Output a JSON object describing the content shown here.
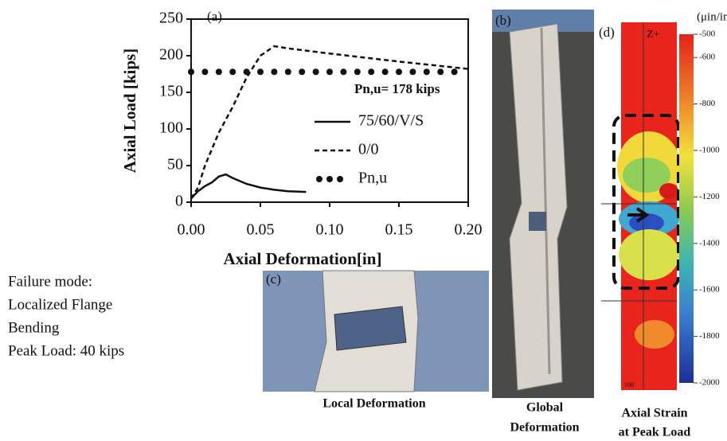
{
  "chart_data": {
    "type": "line",
    "panel_label": "(a)",
    "x_label": "Axial Deformation[in]",
    "y_label": "Axial Load [kips]",
    "xlim": [
      0,
      0.2
    ],
    "ylim": [
      0,
      250
    ],
    "xticks": [
      {
        "value": 0,
        "label": "0.00"
      },
      {
        "value": 0.05,
        "label": "0.05"
      },
      {
        "value": 0.1,
        "label": "0.10"
      },
      {
        "value": 0.15,
        "label": "0.15"
      },
      {
        "value": 0.2,
        "label": "0.20"
      }
    ],
    "yticks": [
      0,
      50,
      100,
      150,
      200,
      250
    ],
    "annotation": "Pn,u= 178 kips",
    "series": [
      {
        "name": "75/60/V/S",
        "color": "#111111",
        "style": "solid",
        "x": [
          0,
          0.005,
          0.01,
          0.015,
          0.02,
          0.025,
          0.03,
          0.04,
          0.05,
          0.06,
          0.07,
          0.083
        ],
        "values": [
          5,
          15,
          22,
          27,
          35,
          38,
          33,
          25,
          20,
          17,
          15,
          14
        ]
      },
      {
        "name": "0/0",
        "color": "#111111",
        "style": "dashed",
        "x": [
          0,
          0.005,
          0.01,
          0.02,
          0.03,
          0.04,
          0.05,
          0.06,
          0.07,
          0.1,
          0.15,
          0.2
        ],
        "values": [
          5,
          20,
          50,
          95,
          130,
          170,
          200,
          213,
          210,
          203,
          192,
          182
        ]
      },
      {
        "name": "Pn,u",
        "color": "#111111",
        "style": "dotted",
        "x": [
          0,
          0.01,
          0.02,
          0.03,
          0.04,
          0.05,
          0.06,
          0.07,
          0.08,
          0.09,
          0.1,
          0.11,
          0.12,
          0.13,
          0.14,
          0.15,
          0.16,
          0.17,
          0.18,
          0.19
        ],
        "values": [
          178,
          178,
          178,
          178,
          178,
          178,
          178,
          178,
          178,
          178,
          178,
          178,
          178,
          178,
          178,
          178,
          178,
          178,
          178,
          178
        ]
      }
    ]
  },
  "failure_text": [
    "Failure mode:",
    "Localized Flange",
    "Bending",
    "Peak Load: 40 kips"
  ],
  "panels": {
    "b": {
      "label": "(b)",
      "caption": [
        "Global",
        "Deformation"
      ]
    },
    "c": {
      "label": "(c)",
      "caption": "Local Deformation"
    },
    "d": {
      "label": "(d)",
      "axis_label": "Z+",
      "corner_label": "100",
      "caption": [
        "Axial Strain",
        "at Peak Load"
      ]
    }
  },
  "colorbar": {
    "title": "(μin/in)",
    "lim": [
      -2000,
      -500
    ],
    "ticks": [
      -500,
      -600,
      -800,
      -1000,
      -1200,
      -1400,
      -1600,
      -1800,
      -2000
    ]
  }
}
